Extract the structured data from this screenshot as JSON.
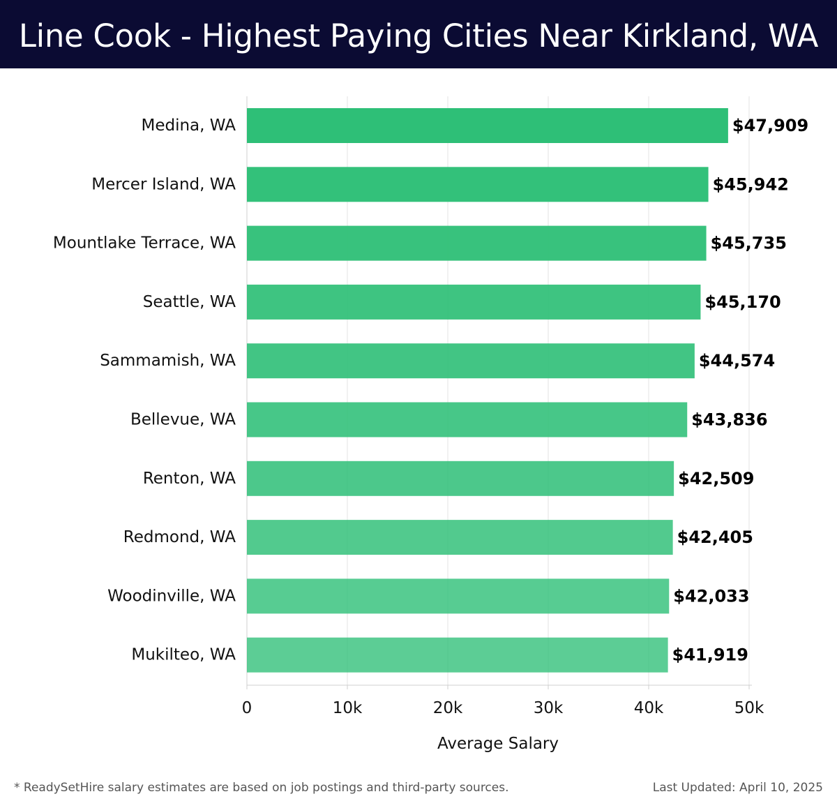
{
  "header": {
    "title": "Line Cook - Highest Paying Cities Near Kirkland, WA"
  },
  "chart_data": {
    "type": "bar",
    "orientation": "horizontal",
    "title": "Line Cook - Highest Paying Cities Near Kirkland, WA",
    "xlabel": "Average Salary",
    "ylabel": "",
    "xlim": [
      0,
      50000
    ],
    "x_ticks": [
      0,
      10000,
      20000,
      30000,
      40000,
      50000
    ],
    "x_tick_labels": [
      "0",
      "10k",
      "20k",
      "30k",
      "40k",
      "50k"
    ],
    "grid": true,
    "categories": [
      "Medina, WA",
      "Mercer Island, WA",
      "Mountlake Terrace, WA",
      "Seattle, WA",
      "Sammamish, WA",
      "Bellevue, WA",
      "Renton, WA",
      "Redmond, WA",
      "Woodinville, WA",
      "Mukilteo, WA"
    ],
    "values": [
      47909,
      45942,
      45735,
      45170,
      44574,
      43836,
      42509,
      42405,
      42033,
      41919
    ],
    "value_labels": [
      "$47,909",
      "$45,942",
      "$45,735",
      "$45,170",
      "$44,574",
      "$43,836",
      "$42,509",
      "$42,405",
      "$42,033",
      "$41,919"
    ],
    "bar_color": "#2ebf77"
  },
  "footer": {
    "note": "* ReadySetHire salary estimates are based on job postings and third-party sources.",
    "updated": "Last Updated: April 10, 2025"
  }
}
